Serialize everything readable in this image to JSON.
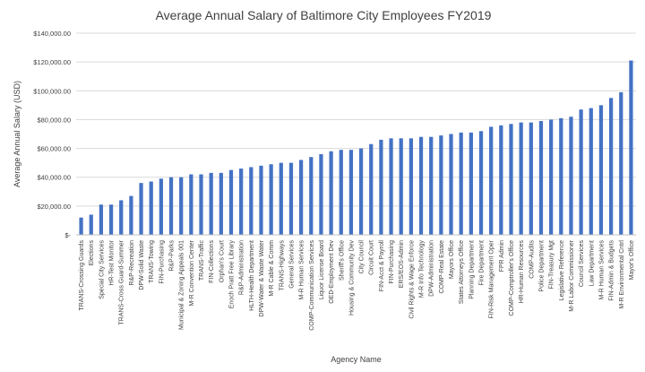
{
  "chart_data": {
    "type": "bar",
    "title": "Average Annual Salary of Baltimore City Employees FY2019",
    "xlabel": "Agency Name",
    "ylabel": "Average Annual Salary (USD)",
    "ylim": [
      0,
      140000
    ],
    "yticks": [
      0,
      20000,
      40000,
      60000,
      80000,
      100000,
      120000,
      140000
    ],
    "ytick_labels": [
      "$-",
      "$20,000.00",
      "$40,000.00",
      "$60,000.00",
      "$80,000.00",
      "$100,000.00",
      "$120,000.00",
      "$140,000.00"
    ],
    "grid": true,
    "legend": "none",
    "bar_color": "#4472c4",
    "categories": [
      "TRANS-Crossing Guards",
      "Elections",
      "Special City Services",
      "HR-Test Monitor",
      "TRANS-Cross Guard-Summer",
      "R&P-Recreation",
      "DPW-Solid Waste",
      "TRANS-Towing",
      "FIN-Purchasing",
      "R&P-Parks",
      "Municipal & Zoning Appeals 001",
      "M-R Convention Center",
      "TRANS-Traffic",
      "FIN-Collections",
      "Orphan's Court",
      "Enoch Pratt Free Library",
      "R&P-Administration",
      "HLTH-Health Department",
      "DPW-Water & Waste Water",
      "M-R Cable & Comm",
      "TRANS-Highways",
      "General Services",
      "M-R Human Services",
      "COMP-Communication Services",
      "Liquor License Board",
      "OED-Employment Dev",
      "Sheriff's Office",
      "Housing & Community Dev",
      "City Council",
      "Circuit Court",
      "FIN-Acct & Payroll",
      "FIN-Purchasing",
      "ERS/EOS-Admin",
      "Civil Rights & Wage Enforce",
      "M-R Info Technology",
      "DPW-Administration",
      "COMP-Real Estate",
      "Mayors Office",
      "States Attorneys Office",
      "Planning Department",
      "Fire Department",
      "FIN-Risk Management Oper",
      "FPR Admin",
      "COMP-Comptroller's Office",
      "HR-Human Resources",
      "COMP-Audits",
      "Police Department",
      "FIN-Treasury Mgt",
      "Legislative Reference",
      "M-R Labor Commissioner",
      "Council Services",
      "Law Department",
      "M-R Human Services",
      "FIN-Admin & Budgets",
      "M-R Environmental Cntrl",
      "Mayor's Office"
    ],
    "values": [
      12000,
      14000,
      21000,
      21000,
      24000,
      27000,
      36000,
      37000,
      39000,
      40000,
      40000,
      42000,
      42000,
      43000,
      43000,
      45000,
      46000,
      47000,
      48000,
      49000,
      50000,
      50000,
      52000,
      54000,
      56000,
      58000,
      59000,
      59000,
      60000,
      63000,
      66000,
      67000,
      67000,
      67000,
      68000,
      68000,
      69000,
      70000,
      71000,
      71000,
      72000,
      75000,
      76000,
      77000,
      78000,
      78000,
      79000,
      80000,
      81000,
      82000,
      87000,
      88000,
      90000,
      95000,
      99000,
      121000
    ]
  }
}
